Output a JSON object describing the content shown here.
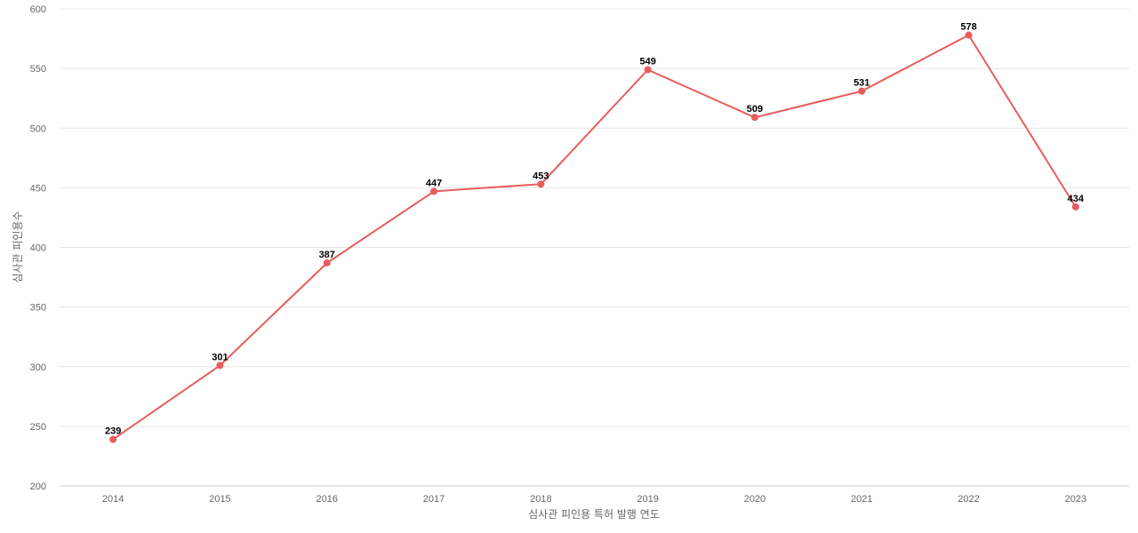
{
  "chart_data": {
    "type": "line",
    "title": "",
    "xlabel": "심사관 피인용 특허 발행 연도",
    "ylabel": "심사관 피인용수",
    "categories": [
      "2014",
      "2015",
      "2016",
      "2017",
      "2018",
      "2019",
      "2020",
      "2021",
      "2022",
      "2023"
    ],
    "series": [
      {
        "values": [
          239,
          301,
          387,
          447,
          453,
          549,
          509,
          531,
          578,
          434
        ],
        "color": "#e85c5c"
      }
    ],
    "ylim": [
      200,
      600
    ],
    "yticks": [
      200,
      250,
      300,
      350,
      400,
      450,
      500,
      550,
      600
    ],
    "grid": true,
    "legend": "none",
    "data_labels": true
  }
}
